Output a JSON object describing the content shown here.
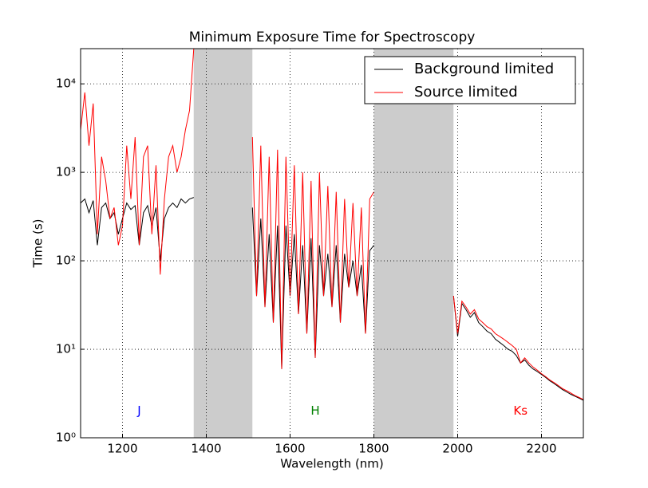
{
  "chart_data": {
    "type": "line",
    "title": "Minimum Exposure Time for Spectroscopy",
    "x_label": "Wavelength (nm)",
    "y_label": "Time (s)",
    "xlim": [
      1100,
      2300
    ],
    "xticks": [
      1200,
      1400,
      1600,
      1800,
      2000,
      2200
    ],
    "ylim": [
      1,
      25000
    ],
    "log_y": true,
    "yticks": [
      {
        "value": 1,
        "label": "10⁰"
      },
      {
        "value": 10,
        "label": "10¹"
      },
      {
        "value": 100,
        "label": "10²"
      },
      {
        "value": 1000,
        "label": "10³"
      },
      {
        "value": 10000,
        "label": "10⁴"
      }
    ],
    "grid": true,
    "legend": "upper right",
    "bands": [
      [
        1370,
        1510
      ],
      [
        1800,
        1990
      ]
    ],
    "band_color": "#cccccc",
    "x": [
      1100,
      1110,
      1120,
      1130,
      1140,
      1150,
      1160,
      1170,
      1180,
      1190,
      1200,
      1210,
      1220,
      1230,
      1240,
      1250,
      1260,
      1270,
      1280,
      1290,
      1300,
      1310,
      1320,
      1330,
      1340,
      1350,
      1360,
      1370,
      1440,
      1510,
      1520,
      1530,
      1540,
      1550,
      1560,
      1570,
      1580,
      1590,
      1600,
      1610,
      1620,
      1630,
      1640,
      1650,
      1660,
      1670,
      1680,
      1690,
      1700,
      1710,
      1720,
      1730,
      1740,
      1750,
      1760,
      1770,
      1780,
      1790,
      1800,
      1900,
      1990,
      2000,
      2010,
      2020,
      2030,
      2040,
      2050,
      2060,
      2070,
      2080,
      2090,
      2100,
      2110,
      2120,
      2130,
      2140,
      2150,
      2160,
      2170,
      2180,
      2190,
      2200,
      2210,
      2220,
      2230,
      2240,
      2250,
      2260,
      2270,
      2280,
      2290,
      2300
    ],
    "series": [
      {
        "name": "Background limited",
        "color": "#000000",
        "values": [
          450,
          500,
          350,
          480,
          150,
          400,
          450,
          300,
          350,
          200,
          300,
          450,
          380,
          420,
          150,
          350,
          420,
          250,
          400,
          100,
          300,
          400,
          450,
          400,
          500,
          450,
          500,
          520,
          null,
          400,
          40,
          300,
          30,
          200,
          20,
          250,
          6,
          250,
          40,
          200,
          25,
          150,
          15,
          180,
          8,
          150,
          40,
          120,
          30,
          150,
          20,
          120,
          50,
          100,
          40,
          90,
          15,
          130,
          150,
          null,
          40,
          14,
          33,
          28,
          23,
          26,
          20,
          18,
          16,
          15,
          13,
          12,
          11,
          10,
          9.5,
          8.5,
          7,
          7.6,
          6.6,
          6,
          5.6,
          5.2,
          4.8,
          4.4,
          4.1,
          3.8,
          3.5,
          3.3,
          3.1,
          2.95,
          2.8,
          2.65
        ]
      },
      {
        "name": "Source limited",
        "color": "#ff0000",
        "values": [
          3000,
          8000,
          2000,
          6000,
          200,
          1500,
          800,
          300,
          400,
          150,
          250,
          2000,
          500,
          2500,
          150,
          1500,
          2000,
          200,
          1200,
          70,
          500,
          1500,
          2000,
          1000,
          1500,
          3000,
          5000,
          25000,
          null,
          2500,
          40,
          2000,
          30,
          1500,
          20,
          1800,
          6,
          1500,
          40,
          1200,
          25,
          1000,
          15,
          800,
          8,
          1000,
          40,
          700,
          30,
          600,
          20,
          500,
          50,
          450,
          40,
          400,
          15,
          500,
          600,
          null,
          40,
          15,
          35,
          30,
          25,
          28,
          22,
          20,
          18,
          17,
          15,
          14,
          13,
          12,
          11,
          10,
          7,
          8,
          7,
          6.3,
          5.8,
          5.3,
          4.9,
          4.5,
          4.2,
          3.9,
          3.6,
          3.4,
          3.2,
          3.0,
          2.85,
          2.7
        ]
      }
    ],
    "annotations": [
      {
        "text": "J",
        "x": 1240,
        "y": 2,
        "color": "#0000ff"
      },
      {
        "text": "H",
        "x": 1660,
        "y": 2,
        "color": "#008000"
      },
      {
        "text": "Ks",
        "x": 2150,
        "y": 2,
        "color": "#ff0000"
      }
    ]
  }
}
